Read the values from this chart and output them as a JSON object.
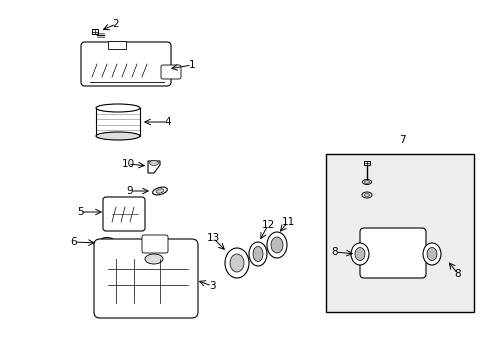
{
  "bg_color": "#ffffff",
  "line_color": "#000000",
  "box_bg": "#eeeeee",
  "fig_width": 4.89,
  "fig_height": 3.6,
  "dpi": 100
}
